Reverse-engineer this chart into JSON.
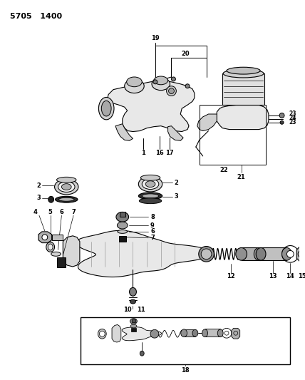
{
  "bg_color": "#ffffff",
  "line_color": "#000000",
  "fig_width": 4.28,
  "fig_height": 5.33,
  "dpi": 100,
  "top_text": "5705   1400",
  "label_19": "19",
  "label_20": "20",
  "label_1": "1",
  "label_16": "16",
  "label_17": "17",
  "label_21": "21",
  "label_22": "22",
  "label_23a": "23",
  "label_24": "24",
  "label_23b": "23",
  "label_2": "2",
  "label_3": "3",
  "label_4": "4",
  "label_5": "5",
  "label_6": "6",
  "label_7": "7",
  "label_8": "8",
  "label_9": "9",
  "label_6b": "6",
  "label_7b": "7",
  "label_10": "10",
  "label_11": "11",
  "label_12": "12",
  "label_13": "13",
  "label_14": "14",
  "label_15": "15",
  "label_18": "18"
}
